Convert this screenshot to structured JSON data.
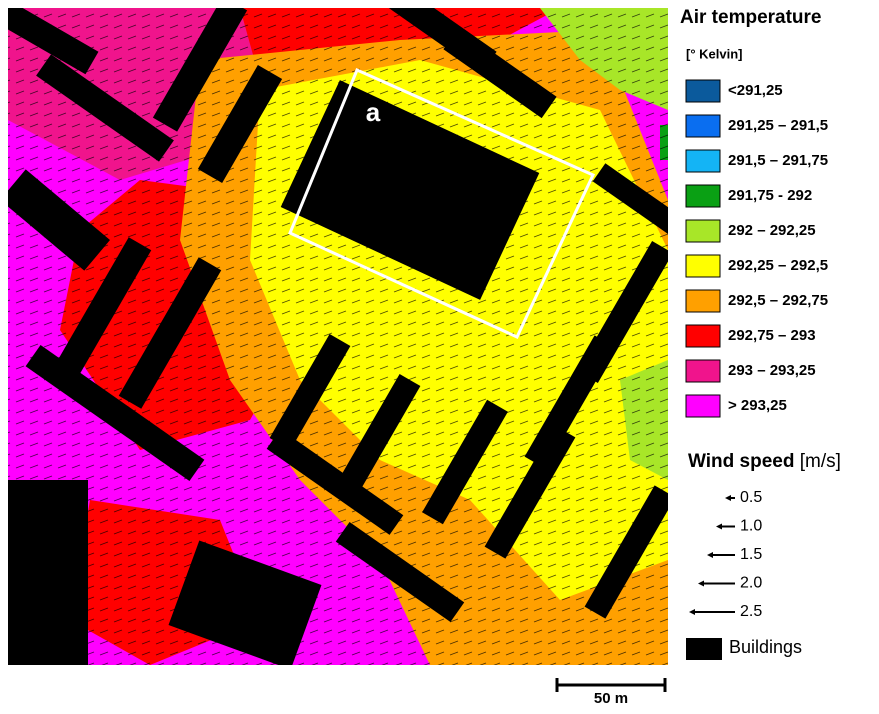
{
  "legend": {
    "title": "Air temperature",
    "unit": "[° Kelvin]",
    "classes": [
      {
        "label": "<291,25",
        "color": "#0b5a9c"
      },
      {
        "label": "291,25 – 291,5",
        "color": "#0a6ef0"
      },
      {
        "label": "291,5 – 291,75",
        "color": "#14b4f5"
      },
      {
        "label": "291,75 - 292",
        "color": "#0aa014"
      },
      {
        "label": "292 – 292,25",
        "color": "#a8e628"
      },
      {
        "label": "292,25 – 292,5",
        "color": "#ffff00"
      },
      {
        "label": "292,5 – 292,75",
        "color": "#ffa000"
      },
      {
        "label": "292,75 – 293",
        "color": "#ff0000"
      },
      {
        "label": "293 – 293,25",
        "color": "#f0148c"
      },
      {
        "label": "> 293,25",
        "color": "#ff00ff"
      }
    ],
    "wind_title": "Wind speed",
    "wind_unit": "[m/s]",
    "wind_speeds": [
      "0.5",
      "1.0",
      "1.5",
      "2.0",
      "2.5"
    ],
    "buildings": "Buildings"
  },
  "map": {
    "label": "a"
  },
  "scale_bar": {
    "label": "50 m"
  }
}
